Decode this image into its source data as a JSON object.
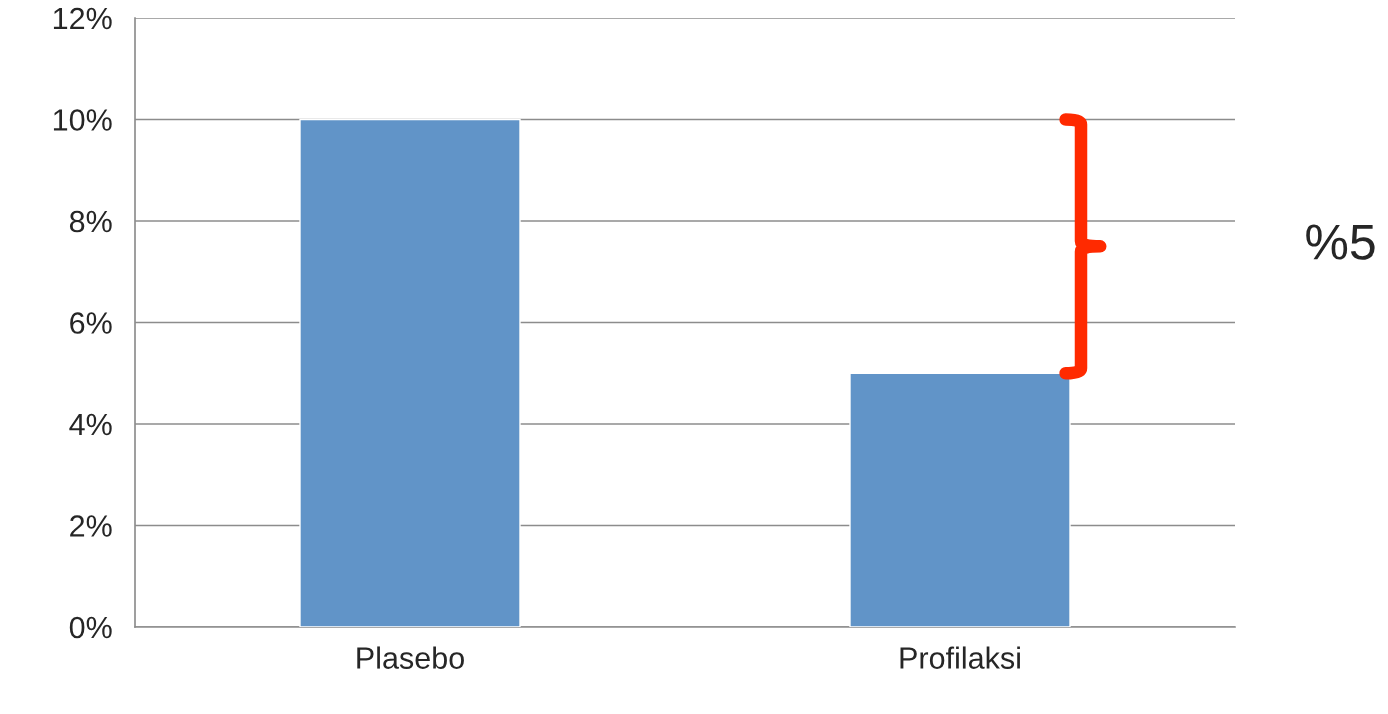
{
  "chart_data": {
    "type": "bar",
    "categories": [
      "Plasebo",
      "Profilaksi"
    ],
    "values": [
      10,
      5
    ],
    "color": "#6194c8",
    "ylim": [
      0,
      12
    ],
    "yticks": [
      {
        "value": 0,
        "label": "0%"
      },
      {
        "value": 2,
        "label": "2%"
      },
      {
        "value": 4,
        "label": "4%"
      },
      {
        "value": 6,
        "label": "6%"
      },
      {
        "value": 8,
        "label": "8%"
      },
      {
        "value": 10,
        "label": "10%"
      },
      {
        "value": 12,
        "label": "12%"
      }
    ],
    "grid": "y",
    "annotations": [
      "%5"
    ]
  }
}
